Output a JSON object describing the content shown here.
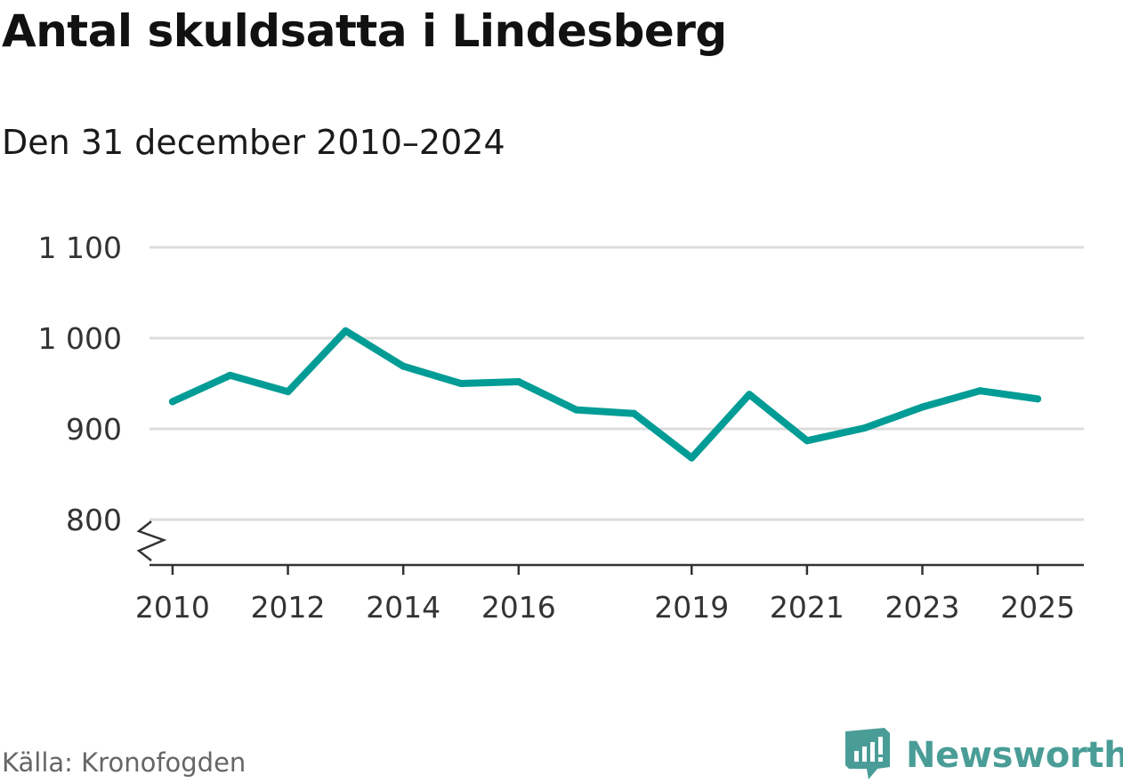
{
  "header": {
    "title": "Antal skuldsatta i Lindesberg",
    "subtitle": "Den 31 december 2010–2024"
  },
  "footer": {
    "source": "Källa: Kronofogden",
    "brand": "Newsworthy",
    "brand_color": "#4a9d97"
  },
  "chart_data": {
    "type": "line",
    "title": "Antal skuldsatta i Lindesberg",
    "subtitle": "Den 31 december 2010–2024",
    "xlabel": "",
    "ylabel": "",
    "line_color": "#009c95",
    "grid": true,
    "axis_break": true,
    "ylim": [
      750,
      1100
    ],
    "xlim": [
      2009.6,
      2025.8
    ],
    "y_ticks": [
      800,
      900,
      1000,
      1100
    ],
    "y_tick_labels": [
      "800",
      "900",
      "1 000",
      "1 100"
    ],
    "x_ticks": [
      2010,
      2012,
      2014,
      2016,
      2019,
      2021,
      2023,
      2025
    ],
    "x_tick_labels": [
      "2010",
      "2012",
      "2014",
      "2016",
      "2019",
      "2021",
      "2023",
      "2025"
    ],
    "series": [
      {
        "name": "Antal skuldsatta",
        "x": [
          2010,
          2011,
          2012,
          2013,
          2014,
          2015,
          2016,
          2017,
          2018,
          2019,
          2020,
          2021,
          2022,
          2023,
          2024,
          2025
        ],
        "values": [
          930,
          959,
          941,
          1008,
          969,
          950,
          952,
          921,
          917,
          868,
          938,
          887,
          901,
          924,
          942,
          933
        ]
      }
    ]
  }
}
